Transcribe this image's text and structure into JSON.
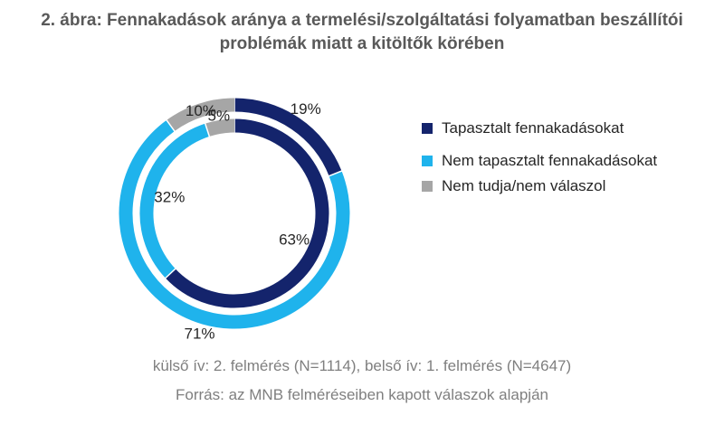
{
  "title_lines": [
    "2. ábra: Fennakadások aránya a termelési/szolgáltatási folyamatban beszállítói",
    "problémák miatt a kitöltők körében"
  ],
  "legend": [
    {
      "label": "Tapasztalt fennakadásokat",
      "color": "#14246c"
    },
    {
      "label": "Nem tapasztalt fennakadásokat",
      "color": "#1fb3ec"
    },
    {
      "label": "Nem tudja/nem válaszol",
      "color": "#a6a6a6"
    }
  ],
  "note": "külső ív: 2. felmérés (N=1114), belső ív: 1. felmérés (N=4647)",
  "source": "Forrás: az MNB felméréseiben kapott válaszok alapján",
  "chart_data": {
    "type": "pie",
    "subtype": "double-donut",
    "categories": [
      "Tapasztalt fennakadásokat",
      "Nem tapasztalt fennakadásokat",
      "Nem tudja/nem válaszol"
    ],
    "colors": [
      "#14246c",
      "#1fb3ec",
      "#a6a6a6"
    ],
    "series": [
      {
        "ring": "outer",
        "values": [
          19,
          71,
          10
        ],
        "labels": [
          "19%",
          "71%",
          "10%"
        ]
      },
      {
        "ring": "inner",
        "values": [
          63,
          32,
          5
        ],
        "labels": [
          "63%",
          "32%",
          "5%"
        ]
      }
    ],
    "legend_position": "right"
  }
}
